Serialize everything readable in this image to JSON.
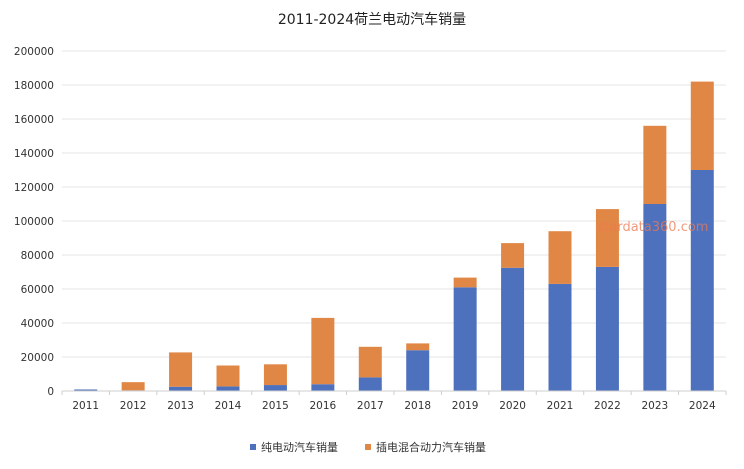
{
  "chart_data": {
    "type": "bar",
    "stacked": true,
    "title": "2011-2024荷兰电动汽车销量",
    "xlabel": "",
    "ylabel": "",
    "categories": [
      "2011",
      "2012",
      "2013",
      "2014",
      "2015",
      "2016",
      "2017",
      "2018",
      "2019",
      "2020",
      "2021",
      "2022",
      "2023",
      "2024"
    ],
    "series": [
      {
        "name": "纯电动汽车销量",
        "color": "#4e71be",
        "values": [
          900,
          400,
          2500,
          2700,
          3500,
          4000,
          8000,
          24000,
          61000,
          72500,
          63000,
          73000,
          110000,
          130000
        ]
      },
      {
        "name": "插电混合动力汽车销量",
        "color": "#e08745",
        "values": [
          0,
          4800,
          20200,
          12300,
          12200,
          39000,
          18000,
          4000,
          5700,
          14500,
          31000,
          34000,
          46000,
          52000
        ]
      }
    ],
    "ylim": [
      0,
      200000
    ],
    "yticks": [
      "0",
      "20000",
      "40000",
      "60000",
      "80000",
      "100000",
      "120000",
      "140000",
      "160000",
      "180000",
      "200000"
    ],
    "grid": true,
    "legend": "bottom-center",
    "watermark": "stardata360.com"
  }
}
